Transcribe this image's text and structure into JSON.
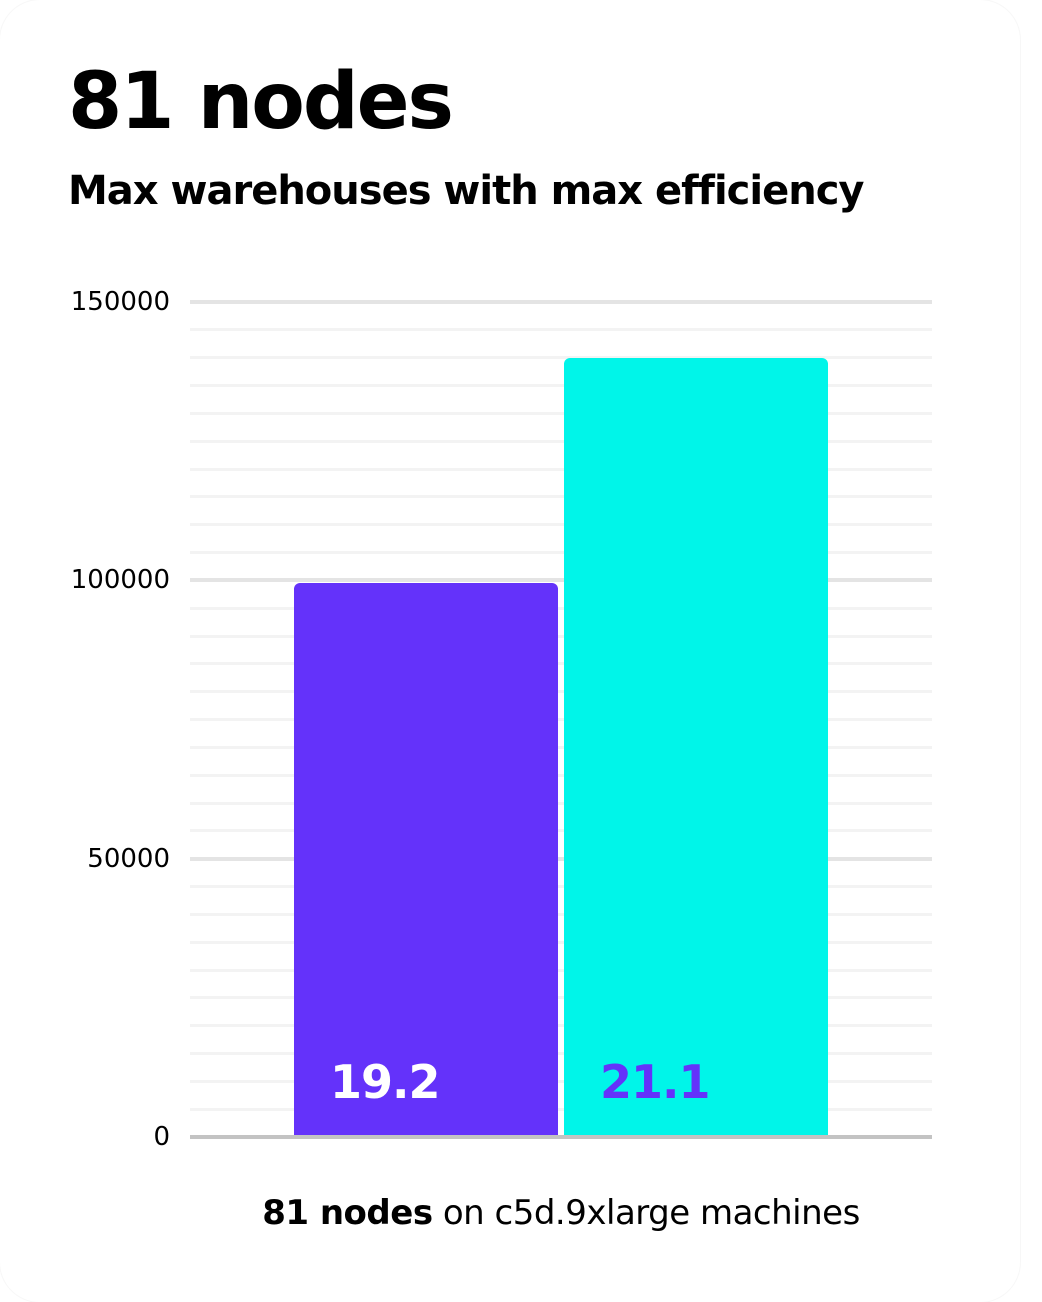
{
  "header": {
    "title": "81 nodes",
    "subtitle": "Max warehouses with max efficiency"
  },
  "caption": {
    "bold": "81 nodes",
    "rest": " on c5d.9xlarge machines"
  },
  "colors": {
    "background": "#ffffff",
    "text": "#000000",
    "bar1": "#6432fa",
    "bar2": "#00f5e9",
    "bar1_label": "#ffffff",
    "bar2_label": "#6432fa",
    "grid_minor": "#f3f3f3",
    "grid_major": "#e4e4e4",
    "axis_line": "#c3c3c3"
  },
  "chart_data": {
    "type": "bar",
    "title": "81 nodes",
    "subtitle": "Max warehouses with max efficiency",
    "caption": "81 nodes on c5d.9xlarge machines",
    "xlabel": "",
    "ylabel": "",
    "ylim": [
      0,
      150000
    ],
    "minor_grid_step": 5000,
    "grid": true,
    "legend": false,
    "yticks": [
      {
        "value": 0,
        "label": "0"
      },
      {
        "value": 50000,
        "label": "50000"
      },
      {
        "value": 100000,
        "label": "100000"
      },
      {
        "value": 150000,
        "label": "150000"
      }
    ],
    "bars": [
      {
        "name": "bar-1",
        "label": "19.2",
        "value": 99500,
        "color": "#6432fa",
        "label_color": "#ffffff"
      },
      {
        "name": "bar-2",
        "label": "21.1",
        "value": 140000,
        "color": "#00f5e9",
        "label_color": "#6432fa"
      }
    ]
  }
}
